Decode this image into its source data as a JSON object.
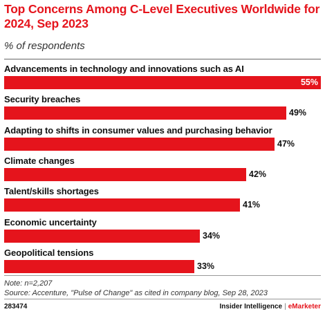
{
  "chart_data": {
    "type": "bar",
    "orientation": "horizontal",
    "title": "Top Concerns Among C-Level Executives Worldwide for 2024, Sep 2023",
    "subtitle": "% of respondents",
    "categories": [
      "Advancements in technology and innovations such as AI",
      "Security breaches",
      "Adapting to shifts in consumer values and purchasing behavior",
      "Climate changes",
      "Talent/skills shortages",
      "Economic uncertainty",
      "Geopolitical tensions"
    ],
    "values": [
      55,
      49,
      47,
      42,
      41,
      34,
      33
    ],
    "value_labels": [
      "55%",
      "49%",
      "47%",
      "42%",
      "41%",
      "34%",
      "33%"
    ],
    "bar_color": "#e5141c",
    "grid": false,
    "legend": "none"
  },
  "footer": {
    "note": "Note: n=2,207",
    "source": "Source: Accenture, \"Pulse of Change\" as cited in company blog, Sep 28, 2023",
    "chart_id": "283474",
    "brand_left": "Insider Intelligence",
    "brand_sep": "|",
    "brand_right": "eMarketer"
  }
}
